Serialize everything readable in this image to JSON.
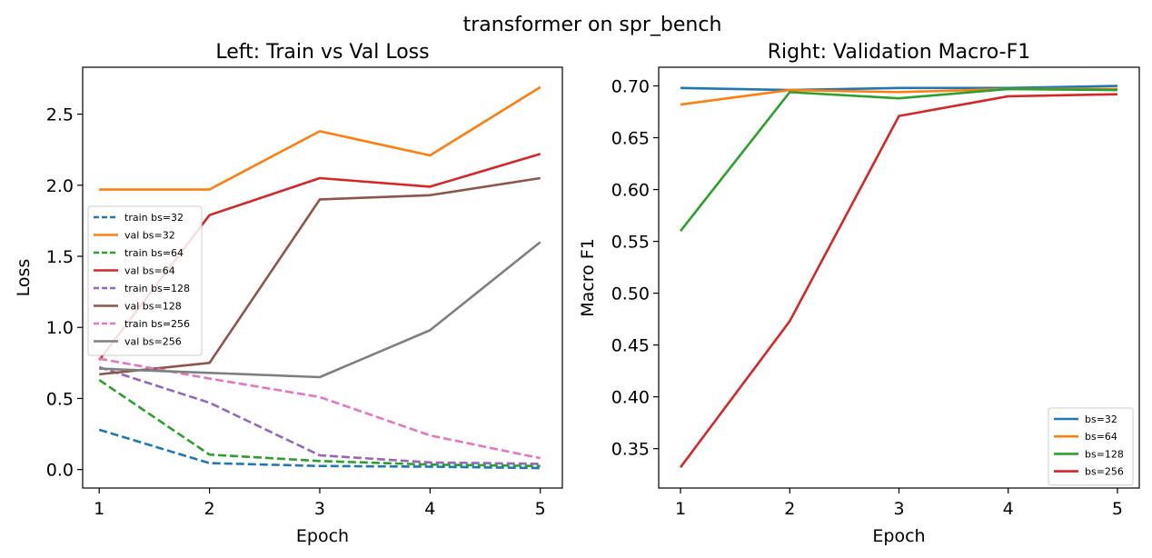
{
  "figure": {
    "suptitle": "transformer on spr_bench"
  },
  "chart_data": [
    {
      "type": "line",
      "title": "Left: Train vs Val Loss",
      "xlabel": "Epoch",
      "ylabel": "Loss",
      "x": [
        1,
        2,
        3,
        4,
        5
      ],
      "xlim": [
        0.85,
        5.2
      ],
      "ylim": [
        -0.13,
        2.83
      ],
      "xticks": [
        1,
        2,
        3,
        4,
        5
      ],
      "yticks": [
        0.0,
        0.5,
        1.0,
        1.5,
        2.0,
        2.5
      ],
      "ytick_labels": [
        "0.0",
        "0.5",
        "1.0",
        "1.5",
        "2.0",
        "2.5"
      ],
      "legend_position": "center-left",
      "series": [
        {
          "name": "train bs=32",
          "color": "#1f77b4",
          "dash": true,
          "values": [
            0.28,
            0.045,
            0.025,
            0.02,
            0.01
          ]
        },
        {
          "name": "val bs=32",
          "color": "#ff7f0e",
          "dash": false,
          "values": [
            1.97,
            1.97,
            2.38,
            2.21,
            2.69
          ]
        },
        {
          "name": "train bs=64",
          "color": "#2ca02c",
          "dash": true,
          "values": [
            0.63,
            0.105,
            0.06,
            0.035,
            0.025
          ]
        },
        {
          "name": "val bs=64",
          "color": "#d62728",
          "dash": false,
          "values": [
            0.77,
            1.79,
            2.05,
            1.99,
            2.22
          ]
        },
        {
          "name": "train bs=128",
          "color": "#9467bd",
          "dash": true,
          "values": [
            0.72,
            0.47,
            0.1,
            0.05,
            0.04
          ]
        },
        {
          "name": "val bs=128",
          "color": "#8c564b",
          "dash": false,
          "values": [
            0.67,
            0.75,
            1.9,
            1.93,
            2.05
          ]
        },
        {
          "name": "train bs=256",
          "color": "#e377c2",
          "dash": true,
          "values": [
            0.78,
            0.64,
            0.51,
            0.24,
            0.08
          ]
        },
        {
          "name": "val bs=256",
          "color": "#7f7f7f",
          "dash": false,
          "values": [
            0.71,
            0.68,
            0.65,
            0.98,
            1.6
          ]
        }
      ]
    },
    {
      "type": "line",
      "title": "Right: Validation Macro-F1",
      "xlabel": "Epoch",
      "ylabel": "Macro F1",
      "x": [
        1,
        2,
        3,
        4,
        5
      ],
      "xlim": [
        0.8,
        5.2
      ],
      "ylim": [
        0.312,
        0.718
      ],
      "xticks": [
        1,
        2,
        3,
        4,
        5
      ],
      "yticks": [
        0.35,
        0.4,
        0.45,
        0.5,
        0.55,
        0.6,
        0.65,
        0.7
      ],
      "ytick_labels": [
        "0.35",
        "0.40",
        "0.45",
        "0.50",
        "0.55",
        "0.60",
        "0.65",
        "0.70"
      ],
      "legend_position": "lower right",
      "series": [
        {
          "name": "bs=32",
          "color": "#1f77b4",
          "dash": false,
          "values": [
            0.698,
            0.696,
            0.698,
            0.698,
            0.7
          ]
        },
        {
          "name": "bs=64",
          "color": "#ff7f0e",
          "dash": false,
          "values": [
            0.682,
            0.696,
            0.694,
            0.697,
            0.697
          ]
        },
        {
          "name": "bs=128",
          "color": "#2ca02c",
          "dash": false,
          "values": [
            0.56,
            0.694,
            0.688,
            0.697,
            0.696
          ]
        },
        {
          "name": "bs=256",
          "color": "#d62728",
          "dash": false,
          "values": [
            0.332,
            0.473,
            0.671,
            0.69,
            0.692
          ]
        }
      ]
    }
  ]
}
